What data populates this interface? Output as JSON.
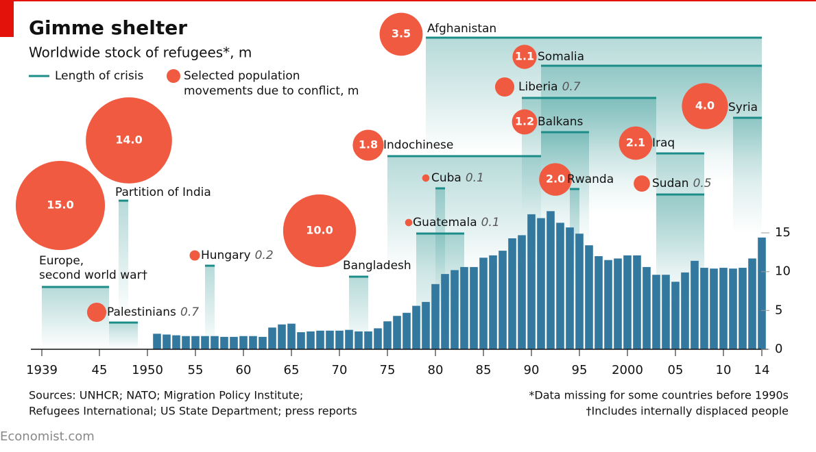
{
  "chart_data": {
    "type": "bar",
    "title": "Gimme shelter",
    "subtitle": "Worldwide stock of refugees*, m",
    "legend": {
      "crisis": "Length of crisis",
      "movement": [
        "Selected population",
        "movements due to conflict, m"
      ]
    },
    "x": [
      1951,
      1952,
      1953,
      1954,
      1955,
      1956,
      1957,
      1958,
      1959,
      1960,
      1961,
      1962,
      1963,
      1964,
      1965,
      1966,
      1967,
      1968,
      1969,
      1970,
      1971,
      1972,
      1973,
      1974,
      1975,
      1976,
      1977,
      1978,
      1979,
      1980,
      1981,
      1982,
      1983,
      1984,
      1985,
      1986,
      1987,
      1988,
      1989,
      1990,
      1991,
      1992,
      1993,
      1994,
      1995,
      1996,
      1997,
      1998,
      1999,
      2000,
      2001,
      2002,
      2003,
      2004,
      2005,
      2006,
      2007,
      2008,
      2009,
      2010,
      2011,
      2012,
      2013,
      2014
    ],
    "values": [
      2.0,
      1.9,
      1.8,
      1.7,
      1.7,
      1.7,
      1.7,
      1.6,
      1.6,
      1.7,
      1.7,
      1.6,
      2.8,
      3.2,
      3.3,
      2.2,
      2.3,
      2.4,
      2.4,
      2.4,
      2.5,
      2.3,
      2.3,
      2.7,
      3.6,
      4.3,
      4.7,
      5.6,
      6.1,
      8.4,
      9.7,
      10.2,
      10.6,
      10.6,
      11.8,
      12.1,
      12.7,
      14.3,
      14.7,
      17.4,
      16.9,
      17.8,
      16.3,
      15.7,
      14.9,
      13.4,
      12.0,
      11.5,
      11.7,
      12.1,
      12.1,
      10.6,
      9.6,
      9.6,
      8.7,
      9.9,
      11.4,
      10.5,
      10.4,
      10.5,
      10.4,
      10.5,
      11.7,
      14.4
    ],
    "color": "#33789f",
    "line_color": "#1b8c88",
    "bubble_color": "#ef5a40",
    "xlim": [
      1938,
      2015
    ],
    "xticks": [
      {
        "value": 1939,
        "label": "1939"
      },
      {
        "value": 1945,
        "label": "45"
      },
      1950,
      {
        "value": 1955,
        "label": "55"
      },
      {
        "value": 1960,
        "label": "60"
      },
      {
        "value": 1965,
        "label": "65"
      },
      {
        "value": 1970,
        "label": "70"
      },
      {
        "value": 1975,
        "label": "75"
      },
      {
        "value": 1980,
        "label": "80"
      },
      {
        "value": 1985,
        "label": "85"
      },
      {
        "value": 1990,
        "label": "90"
      },
      {
        "value": 1995,
        "label": "95"
      },
      2000,
      {
        "value": 2005,
        "label": "05"
      },
      {
        "value": 2010,
        "label": "10"
      },
      {
        "value": 2014,
        "label": "14"
      }
    ],
    "ylim": [
      0,
      20
    ],
    "yticks": [
      0,
      5,
      10,
      15
    ],
    "crises": [
      {
        "name": [
          "Europe,",
          "second world war†"
        ],
        "start": 1939,
        "end": 1946,
        "value": 15,
        "value_label": "15.0"
      },
      {
        "name": "Partition of India",
        "start": 1947,
        "end": 1948,
        "value": 14,
        "value_label": "14.0"
      },
      {
        "name": "Palestinians",
        "start": 1946,
        "end": 1949,
        "value": 0.7
      },
      {
        "name": "Hungary",
        "start": 1956,
        "end": 1957,
        "value": 0.2
      },
      {
        "name": "Bangladesh",
        "start": 1971,
        "end": 1973,
        "value": 10,
        "value_label": "10.0"
      },
      {
        "name": "Indochinese",
        "start": 1975,
        "end": 1991,
        "value": 1.8
      },
      {
        "name": "Cuba",
        "start": 1980,
        "end": 1981,
        "value": 0.1
      },
      {
        "name": "Guatemala",
        "start": 1978,
        "end": 1983,
        "value": 0.1
      },
      {
        "name": "Afghanistan",
        "start": 1979,
        "end": 2014,
        "value": 3.5
      },
      {
        "name": "Somalia",
        "start": 1991,
        "end": 2014,
        "value": 1.1
      },
      {
        "name": "Liberia",
        "start": 1989,
        "end": 2003,
        "value": 0.7
      },
      {
        "name": "Balkans",
        "start": 1991,
        "end": 1996,
        "value": 1.2
      },
      {
        "name": "Rwanda",
        "start": 1994,
        "end": 1995,
        "value": 2,
        "value_label": "2.0"
      },
      {
        "name": "Iraq",
        "start": 2003,
        "end": 2008,
        "value": 2.1
      },
      {
        "name": "Sudan",
        "start": 2003,
        "end": 2008,
        "value": 0.5
      },
      {
        "name": "Syria",
        "start": 2011,
        "end": 2014,
        "value": 4,
        "value_label": "4.0"
      }
    ],
    "sources": [
      "Sources: UNHCR; NATO; Migration Policy Institute;",
      "Refugees International; US State Department; press reports"
    ],
    "notes": [
      "*Data missing for some countries before 1990s",
      "†Includes internally displaced people"
    ],
    "brand": "Economist.com"
  }
}
